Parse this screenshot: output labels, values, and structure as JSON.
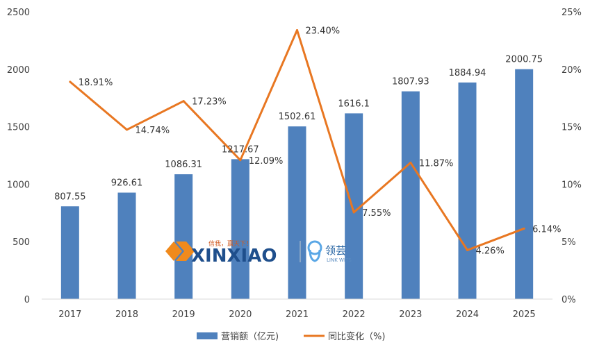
{
  "chart_data": {
    "type": "bar",
    "categories": [
      "2017",
      "2018",
      "2019",
      "2020",
      "2021",
      "2022",
      "2023",
      "2024",
      "2025"
    ],
    "series": [
      {
        "name": "营销额（亿元)",
        "type": "bar",
        "axis": "left",
        "values": [
          807.55,
          926.61,
          1086.31,
          1217.67,
          1502.61,
          1616.1,
          1807.93,
          1884.94,
          2000.75
        ],
        "labels": [
          "807.55",
          "926.61",
          "1086.31",
          "1217.67",
          "1502.61",
          "1616.1",
          "1807.93",
          "1884.94",
          "2000.75"
        ],
        "color": "#4f81bd"
      },
      {
        "name": "同比变化（%)",
        "type": "line",
        "axis": "right",
        "values": [
          18.91,
          14.74,
          17.23,
          12.09,
          23.4,
          7.55,
          11.87,
          4.26,
          6.14
        ],
        "labels": [
          "18.91%",
          "14.74%",
          "17.23%",
          "12.09%",
          "23.40%",
          "7.55%",
          "11.87%",
          "4.26%",
          "6.14%"
        ],
        "color": "#e87722"
      }
    ],
    "y_left": {
      "ylim": [
        0,
        2500
      ],
      "ticks": [
        "0",
        "500",
        "1000",
        "1500",
        "2000",
        "2500"
      ],
      "tick_values": [
        0,
        500,
        1000,
        1500,
        2000,
        2500
      ]
    },
    "y_right": {
      "ylim": [
        0,
        25
      ],
      "ticks": [
        "0%",
        "5%",
        "10%",
        "15%",
        "20%",
        "25%"
      ],
      "tick_values": [
        0,
        5,
        10,
        15,
        20,
        25
      ]
    },
    "grid": false,
    "legend_position": "bottom-center"
  },
  "watermark": {
    "brand": "XINXIAO",
    "slogan": "信我，赢天下！",
    "partner": "领芸",
    "partner_en": "LINK WITS"
  }
}
